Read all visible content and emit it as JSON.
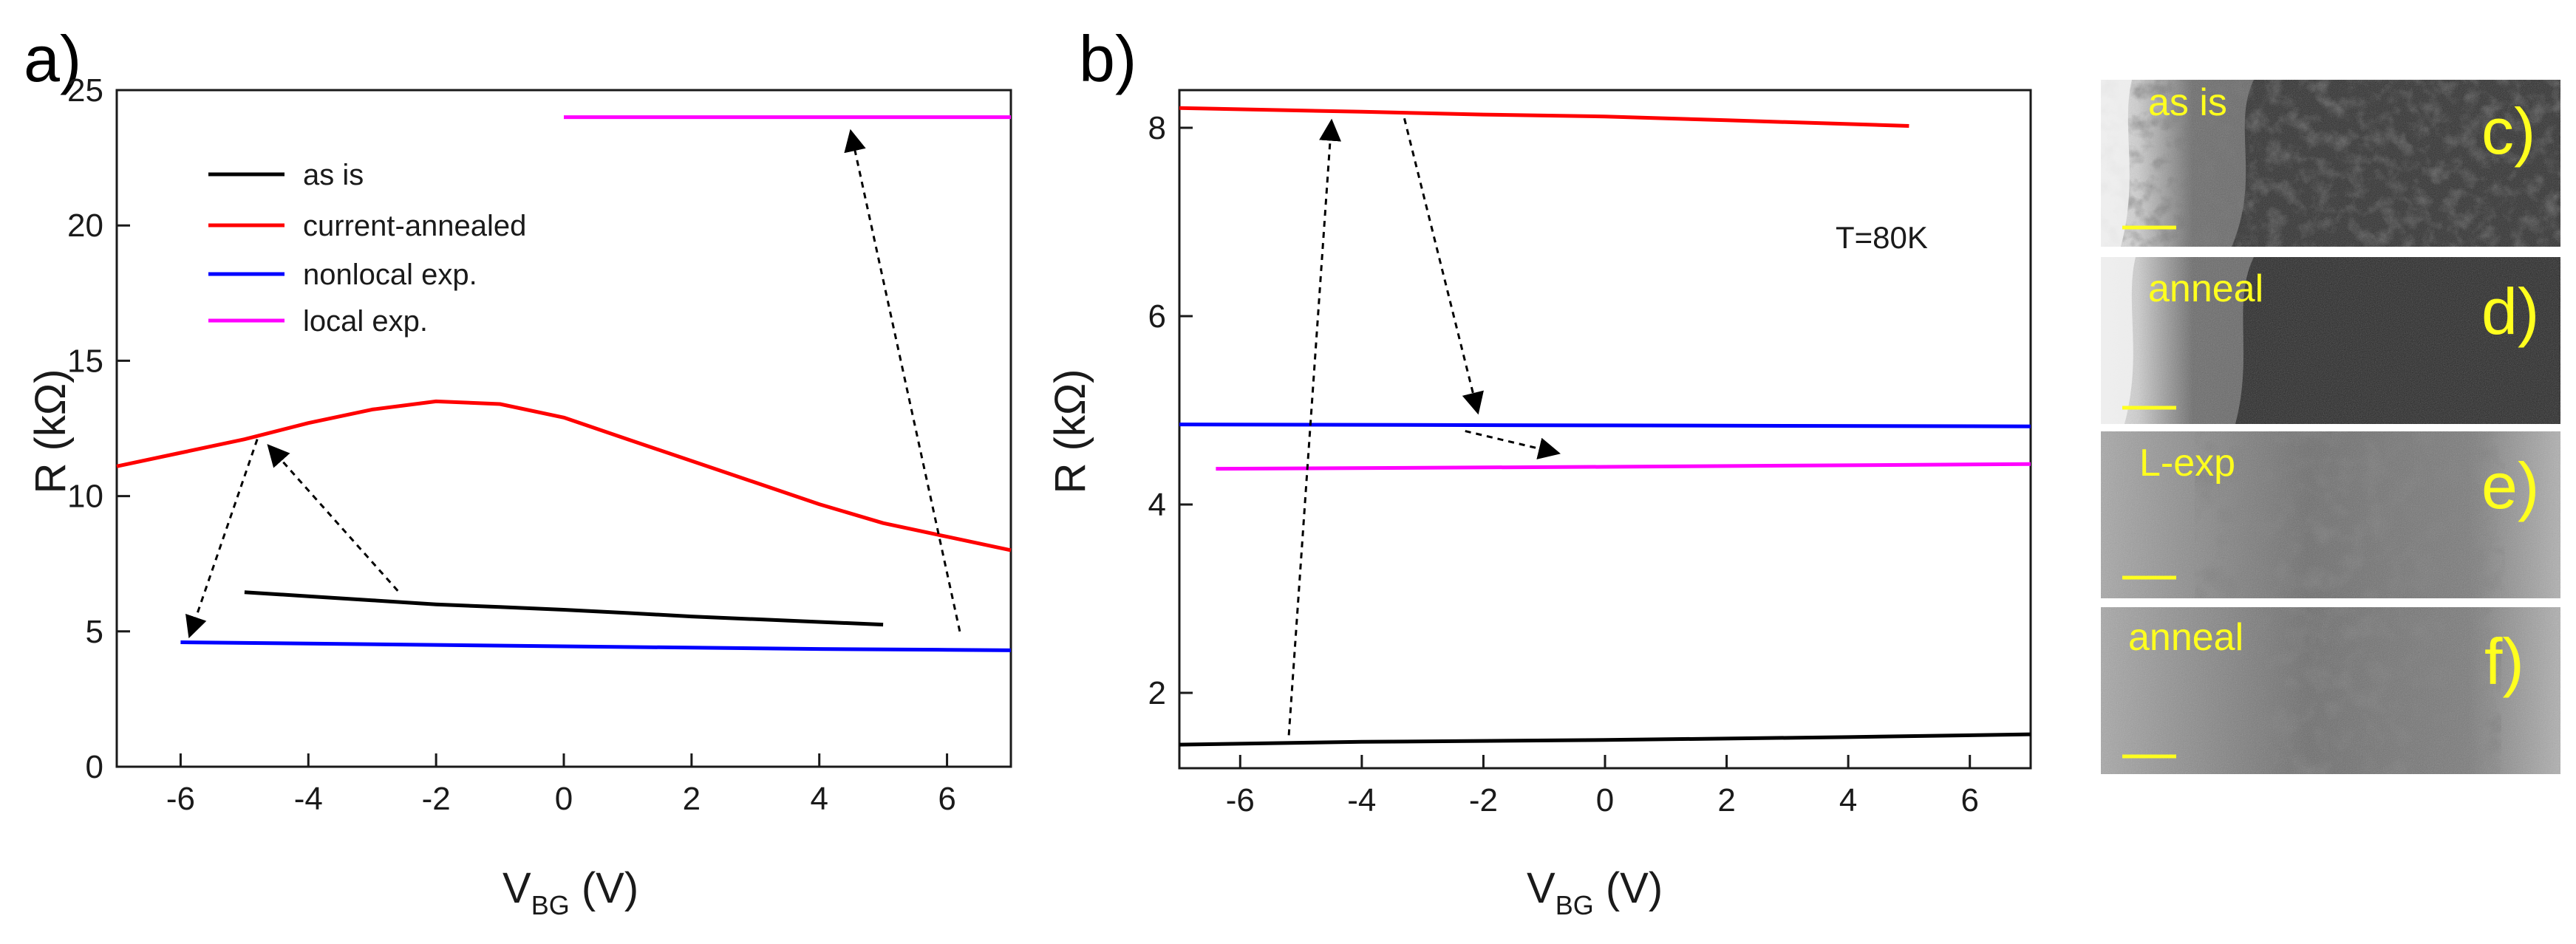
{
  "chart_data": [
    {
      "panel": "a)",
      "type": "line",
      "xlabel": "V",
      "xlabel_sub": "BG",
      "xlabel_unit": " (V)",
      "ylabel": "R (kΩ)",
      "xlim": [
        -7,
        7
      ],
      "ylim": [
        0,
        25
      ],
      "xticks": [
        -6,
        -4,
        -2,
        0,
        2,
        4,
        6
      ],
      "yticks": [
        0,
        5,
        10,
        15,
        20,
        25
      ],
      "legend": {
        "placement": "top-left"
      },
      "series": [
        {
          "name": "as is",
          "color": "#000000",
          "x": [
            -5,
            -4,
            -3,
            -2,
            -1,
            0,
            1,
            2,
            3,
            4,
            5
          ],
          "y": [
            6.45,
            6.3,
            6.15,
            6.0,
            5.9,
            5.8,
            5.68,
            5.55,
            5.45,
            5.35,
            5.25
          ]
        },
        {
          "name": "current-annealed",
          "color": "#ff0000",
          "x": [
            -7,
            -6,
            -5,
            -4,
            -3,
            -2,
            -1,
            0,
            1,
            2,
            3,
            4,
            5,
            6,
            7
          ],
          "y": [
            11.1,
            11.6,
            12.1,
            12.7,
            13.2,
            13.5,
            13.4,
            12.9,
            12.1,
            11.3,
            10.5,
            9.7,
            9.0,
            8.5,
            8.0
          ]
        },
        {
          "name": "nonlocal exp.",
          "color": "#0000ff",
          "x": [
            -6,
            -4,
            -2,
            0,
            2,
            4,
            6,
            7
          ],
          "y": [
            4.6,
            4.55,
            4.5,
            4.45,
            4.4,
            4.35,
            4.32,
            4.3
          ]
        },
        {
          "name": "local exp.",
          "color": "#ff00ff",
          "x": [
            0,
            7
          ],
          "y": [
            24.0,
            24.0
          ]
        }
      ],
      "arrows": [
        {
          "from": [
            -4.8,
            12.1
          ],
          "to": [
            -5.85,
            4.9
          ]
        },
        {
          "from": [
            -2.6,
            6.5
          ],
          "to": [
            -4.6,
            11.8
          ]
        },
        {
          "from": [
            6.2,
            5.0
          ],
          "to": [
            4.5,
            23.4
          ]
        }
      ]
    },
    {
      "panel": "b)",
      "type": "line",
      "xlabel": "V",
      "xlabel_sub": "BG",
      "xlabel_unit": " (V)",
      "ylabel": "R (kΩ)",
      "xlim": [
        -7,
        7
      ],
      "ylim": [
        1.2,
        8.4
      ],
      "xticks": [
        -6,
        -4,
        -2,
        0,
        2,
        4,
        6
      ],
      "yticks": [
        2,
        4,
        6,
        8
      ],
      "annotation": "T=80K",
      "series": [
        {
          "name": "as is",
          "color": "#000000",
          "x": [
            -7,
            -4,
            0,
            4,
            7
          ],
          "y": [
            1.45,
            1.48,
            1.5,
            1.53,
            1.56
          ]
        },
        {
          "name": "current-annealed",
          "color": "#ff0000",
          "x": [
            -7,
            -4,
            -2,
            0,
            2,
            4,
            5
          ],
          "y": [
            8.21,
            8.17,
            8.14,
            8.12,
            8.08,
            8.04,
            8.02
          ]
        },
        {
          "name": "nonlocal exp.",
          "color": "#0000ff",
          "x": [
            -7,
            0,
            7
          ],
          "y": [
            4.85,
            4.84,
            4.83
          ]
        },
        {
          "name": "local exp.",
          "color": "#ff00ff",
          "x": [
            -6.4,
            0,
            7
          ],
          "y": [
            4.38,
            4.4,
            4.43
          ]
        }
      ],
      "arrows": [
        {
          "from": [
            -5.2,
            1.55
          ],
          "to": [
            -4.5,
            8.05
          ]
        },
        {
          "from": [
            -3.3,
            8.1
          ],
          "to": [
            -2.1,
            5.0
          ]
        },
        {
          "from": [
            -2.3,
            4.78
          ],
          "to": [
            -0.8,
            4.55
          ]
        }
      ]
    }
  ],
  "image_panels": [
    {
      "label": "as is",
      "letter": "c)"
    },
    {
      "label": "anneal",
      "letter": "d)"
    },
    {
      "label": "L-exp",
      "letter": "e)"
    },
    {
      "label": "anneal",
      "letter": "f)"
    }
  ]
}
